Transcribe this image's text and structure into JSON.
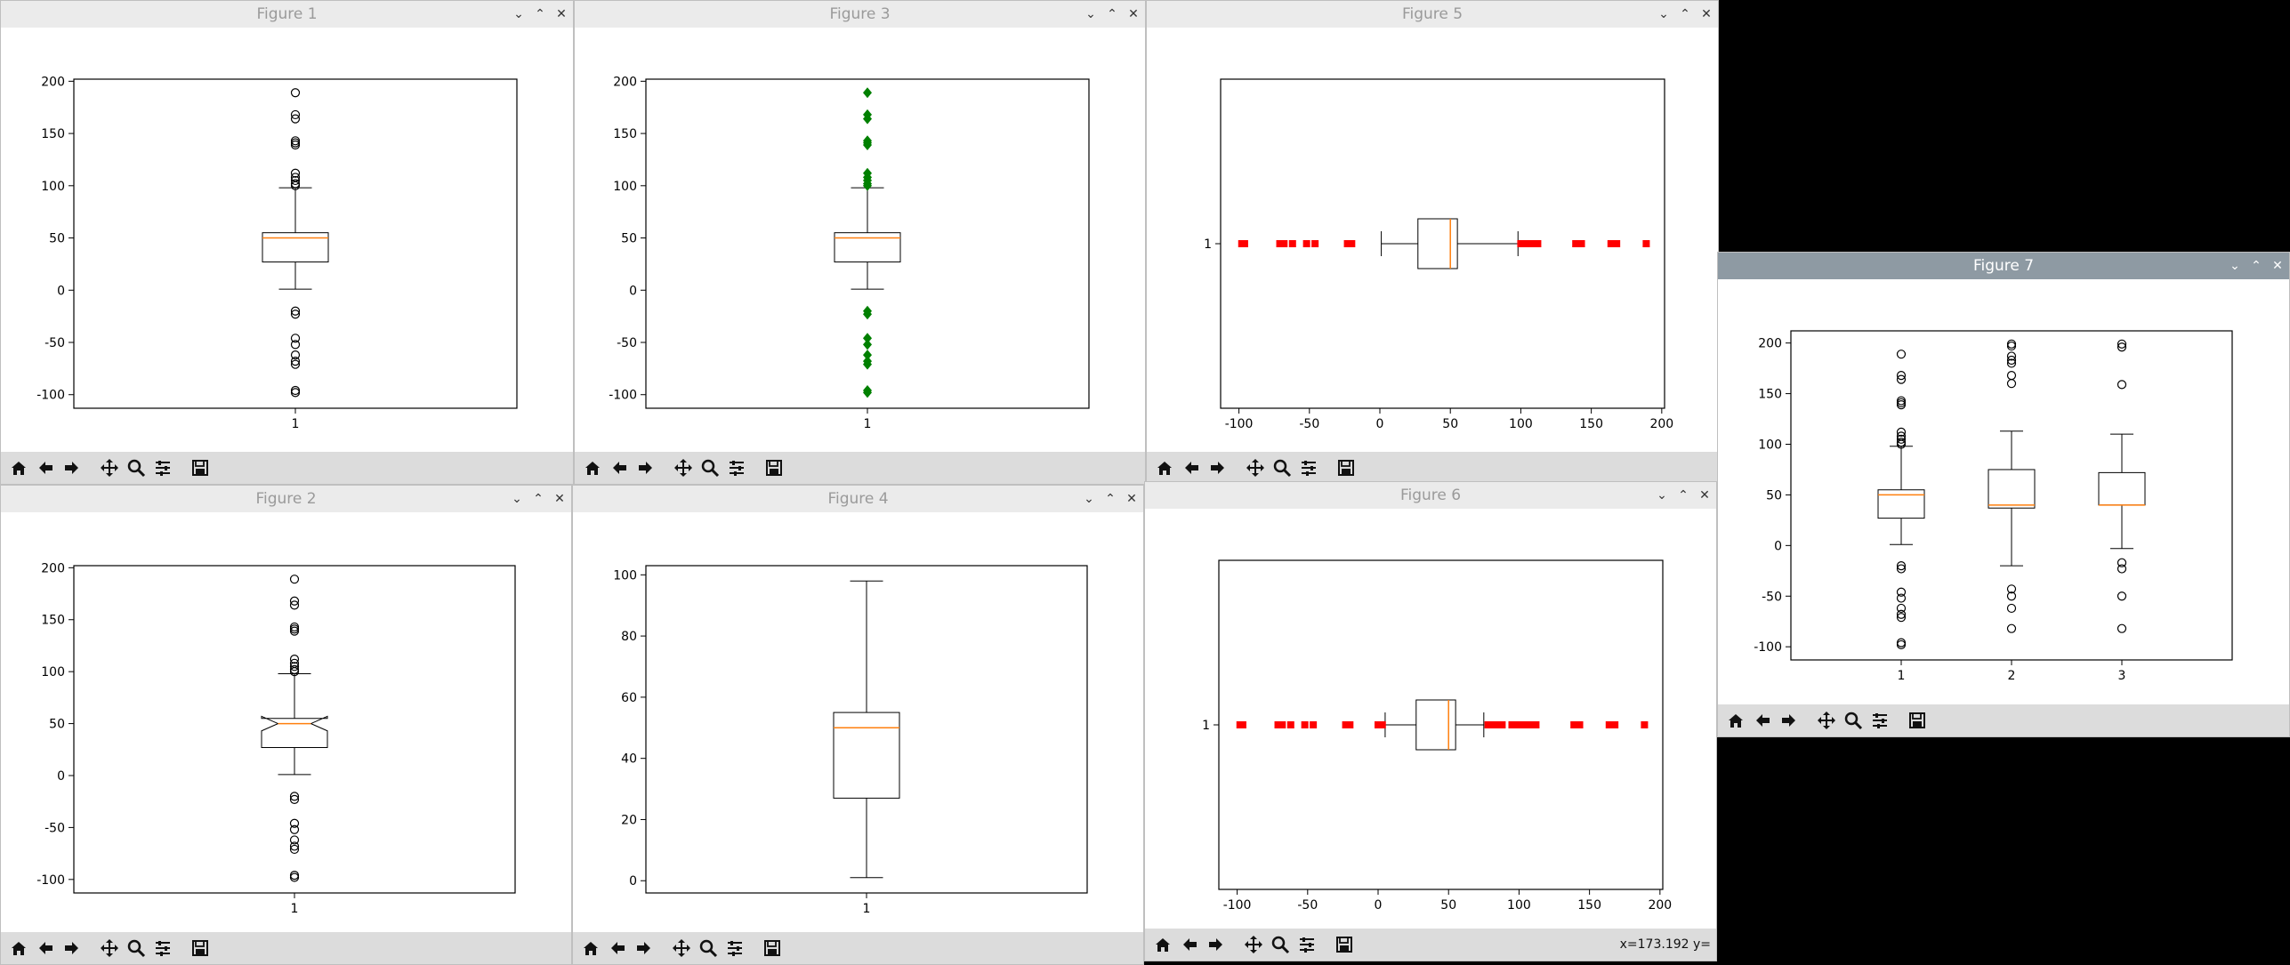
{
  "windows": {
    "fig1": {
      "title": "Figure 1"
    },
    "fig2": {
      "title": "Figure 2"
    },
    "fig3": {
      "title": "Figure 3"
    },
    "fig4": {
      "title": "Figure 4"
    },
    "fig5": {
      "title": "Figure 5"
    },
    "fig6": {
      "title": "Figure 6"
    },
    "fig7": {
      "title": "Figure 7"
    }
  },
  "toolbar": {
    "icons": [
      "home-icon",
      "back-arrow-icon",
      "forward-arrow-icon",
      "pan-move-icon",
      "zoom-magnifier-icon",
      "configure-subplots-icon",
      "save-floppy-icon"
    ]
  },
  "status": {
    "coords": "x=173.192     y="
  },
  "colors": {
    "median": "#ff7f0e",
    "flier_green": "#008000",
    "flier_red": "#ff0000",
    "active_titlebar": "#8e9aa3"
  },
  "chart_data": [
    {
      "id": "fig1",
      "type": "box",
      "orientation": "vertical",
      "categories": [
        "1"
      ],
      "yticks": [
        -100,
        -50,
        0,
        50,
        100,
        150,
        200
      ],
      "ylim": [
        -113,
        202
      ],
      "boxes": [
        {
          "q1": 27,
          "median": 50,
          "q3": 55,
          "whislo": 1,
          "whishi": 98,
          "fliers": [
            189,
            168,
            164,
            143,
            141,
            139,
            112,
            108,
            105,
            102,
            100,
            -20,
            -23,
            -46,
            -52,
            -62,
            -68,
            -71,
            -96,
            -98
          ]
        }
      ],
      "flier_style": "circle"
    },
    {
      "id": "fig2",
      "type": "box",
      "orientation": "vertical",
      "notch": true,
      "categories": [
        "1"
      ],
      "yticks": [
        -100,
        -50,
        0,
        50,
        100,
        150,
        200
      ],
      "ylim": [
        -113,
        202
      ],
      "boxes": [
        {
          "q1": 27,
          "median": 50,
          "q3": 55,
          "notch_lo": 43,
          "notch_hi": 57,
          "whislo": 1,
          "whishi": 98,
          "fliers": [
            189,
            168,
            164,
            143,
            141,
            139,
            112,
            108,
            105,
            102,
            100,
            -20,
            -23,
            -46,
            -52,
            -62,
            -68,
            -71,
            -96,
            -98
          ]
        }
      ],
      "flier_style": "circle"
    },
    {
      "id": "fig3",
      "type": "box",
      "orientation": "vertical",
      "categories": [
        "1"
      ],
      "yticks": [
        -100,
        -50,
        0,
        50,
        100,
        150,
        200
      ],
      "ylim": [
        -113,
        202
      ],
      "boxes": [
        {
          "q1": 27,
          "median": 50,
          "q3": 55,
          "whislo": 1,
          "whishi": 98,
          "fliers": [
            189,
            168,
            164,
            143,
            141,
            139,
            112,
            108,
            105,
            102,
            100,
            -20,
            -23,
            -46,
            -52,
            -62,
            -68,
            -71,
            -96,
            -98
          ]
        }
      ],
      "flier_style": "green-diamond"
    },
    {
      "id": "fig4",
      "type": "box",
      "orientation": "vertical",
      "showfliers": false,
      "categories": [
        "1"
      ],
      "yticks": [
        0,
        20,
        40,
        60,
        80,
        100
      ],
      "ylim": [
        -4,
        103
      ],
      "boxes": [
        {
          "q1": 27,
          "median": 50,
          "q3": 55,
          "whislo": 1,
          "whishi": 98,
          "fliers": []
        }
      ]
    },
    {
      "id": "fig5",
      "type": "box",
      "orientation": "horizontal",
      "categories": [
        "1"
      ],
      "xticks": [
        -100,
        -50,
        0,
        50,
        100,
        150,
        200
      ],
      "xlim": [
        -113,
        202
      ],
      "boxes": [
        {
          "q1": 27,
          "median": 50,
          "q3": 55,
          "whislo": 1,
          "whishi": 98,
          "fliers": [
            -98,
            -96,
            -71,
            -68,
            -62,
            -52,
            -46,
            -23,
            -20,
            100,
            102,
            105,
            108,
            112,
            139,
            141,
            143,
            164,
            168,
            189
          ]
        }
      ],
      "flier_style": "red-square"
    },
    {
      "id": "fig6",
      "type": "box",
      "orientation": "horizontal",
      "categories": [
        "1"
      ],
      "xticks": [
        -100,
        -50,
        0,
        50,
        100,
        150,
        200
      ],
      "xlim": [
        -113,
        202
      ],
      "boxes": [
        {
          "q1": 27,
          "median": 50,
          "q3": 55,
          "whislo": 5,
          "whishi": 75,
          "fliers": [
            -98,
            -96,
            -71,
            -68,
            -62,
            -52,
            -46,
            -23,
            -20,
            0,
            1,
            3,
            78,
            80,
            84,
            86,
            88,
            95,
            97,
            99,
            102,
            105,
            108,
            112,
            139,
            141,
            143,
            164,
            168,
            189
          ]
        }
      ],
      "flier_style": "red-square"
    },
    {
      "id": "fig7",
      "type": "box",
      "orientation": "vertical",
      "categories": [
        "1",
        "2",
        "3"
      ],
      "yticks": [
        -100,
        -50,
        0,
        50,
        100,
        150,
        200
      ],
      "ylim": [
        -113,
        212
      ],
      "boxes": [
        {
          "q1": 27,
          "median": 50,
          "q3": 55,
          "whislo": 1,
          "whishi": 98,
          "fliers": [
            189,
            168,
            164,
            143,
            141,
            139,
            112,
            108,
            105,
            102,
            100,
            -20,
            -23,
            -46,
            -52,
            -62,
            -68,
            -71,
            -96,
            -98
          ]
        },
        {
          "q1": 37,
          "median": 40,
          "q3": 75,
          "whislo": -20,
          "whishi": 113,
          "fliers": [
            199,
            197,
            187,
            183,
            180,
            168,
            160,
            -43,
            -50,
            -62,
            -82
          ]
        },
        {
          "q1": 40,
          "median": 40,
          "q3": 72,
          "whislo": -3,
          "whishi": 110,
          "fliers": [
            199,
            196,
            159,
            -17,
            -23,
            -50,
            -82
          ]
        }
      ],
      "flier_style": "circle"
    }
  ]
}
